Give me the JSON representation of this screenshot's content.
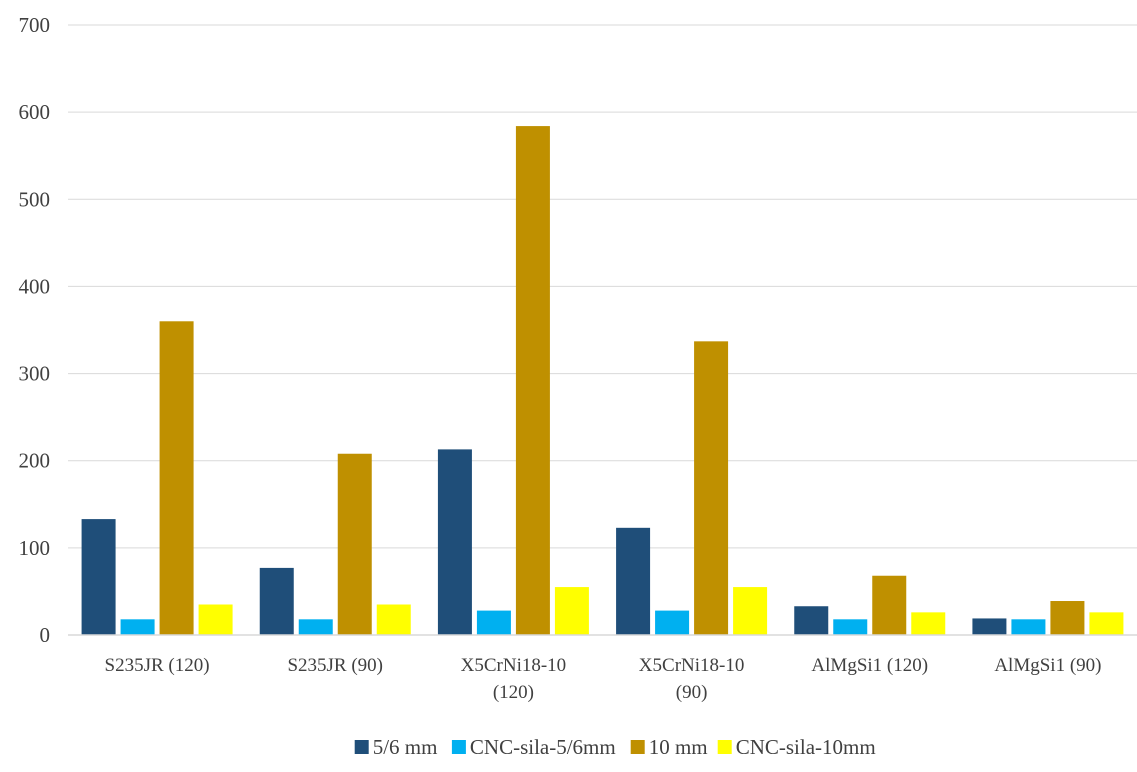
{
  "chart_data": {
    "type": "bar",
    "title": "",
    "xlabel": "",
    "ylabel": "",
    "ylim": [
      0,
      700
    ],
    "yticks": [
      0,
      100,
      200,
      300,
      400,
      500,
      600,
      700
    ],
    "grid": true,
    "legend_position": "bottom",
    "categories": [
      [
        "S235JR (120)"
      ],
      [
        "S235JR (90)"
      ],
      [
        "X5CrNi18-10",
        "(120)"
      ],
      [
        "X5CrNi18-10",
        "(90)"
      ],
      [
        "AlMgSi1 (120)"
      ],
      [
        "AlMgSi1 (90)"
      ]
    ],
    "series": [
      {
        "name": "5/6 mm",
        "color": "#1f4e79",
        "values": [
          133,
          77,
          213,
          123,
          33,
          19
        ]
      },
      {
        "name": "CNC-sila-5/6mm",
        "color": "#00b0f0",
        "values": [
          18,
          18,
          28,
          28,
          18,
          18
        ]
      },
      {
        "name": "10 mm",
        "color": "#bf9000",
        "values": [
          360,
          208,
          584,
          337,
          68,
          39
        ]
      },
      {
        "name": "CNC-sila-10mm",
        "color": "#ffff00",
        "values": [
          35,
          35,
          55,
          55,
          26,
          26
        ]
      }
    ]
  }
}
